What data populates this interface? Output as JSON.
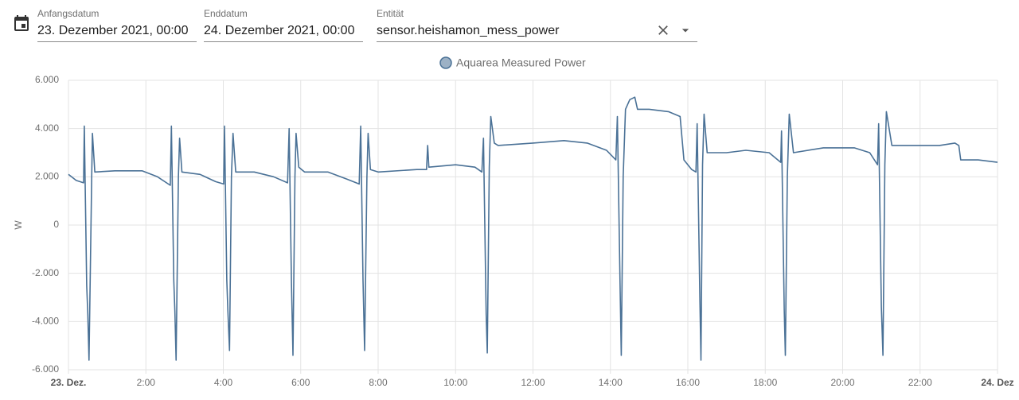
{
  "header": {
    "start_label": "Anfangsdatum",
    "start_value": "23. Dezember 2021, 00:00",
    "end_label": "Enddatum",
    "end_value": "24. Dezember 2021, 00:00",
    "entity_label": "Entität",
    "entity_value": "sensor.heishamon_mess_power"
  },
  "chart_data": {
    "type": "line",
    "y_label": "W",
    "x": [
      0,
      0.2,
      0.39,
      0.41,
      0.47,
      0.5,
      0.53,
      0.6,
      0.62,
      0.68,
      1.2,
      1.9,
      2.3,
      2.63,
      2.66,
      2.72,
      2.75,
      2.78,
      2.84,
      2.87,
      2.93,
      3.4,
      3.8,
      4.01,
      4.03,
      4.09,
      4.12,
      4.16,
      4.21,
      4.25,
      4.32,
      4.8,
      5.3,
      5.66,
      5.7,
      5.76,
      5.8,
      5.85,
      5.88,
      5.95,
      6.1,
      6.7,
      7.2,
      7.51,
      7.55,
      7.61,
      7.65,
      7.71,
      7.74,
      7.8,
      8.0,
      9.0,
      9.25,
      9.28,
      9.31,
      10.0,
      10.5,
      10.68,
      10.72,
      10.79,
      10.82,
      10.87,
      10.91,
      11.0,
      11.1,
      12.0,
      12.8,
      13.4,
      13.9,
      14.14,
      14.18,
      14.25,
      14.28,
      14.33,
      14.39,
      14.5,
      14.63,
      14.7,
      15.0,
      15.5,
      15.8,
      15.9,
      16.1,
      16.21,
      16.24,
      16.31,
      16.34,
      16.38,
      16.42,
      16.5,
      17.0,
      17.5,
      18.1,
      18.4,
      18.42,
      18.49,
      18.52,
      18.57,
      18.62,
      18.73,
      19.5,
      20.3,
      20.7,
      20.9,
      20.93,
      21.0,
      21.04,
      21.09,
      21.13,
      21.27,
      22.0,
      22.5,
      22.9,
      23.0,
      23.05,
      23.5,
      24.0
    ],
    "series": [
      {
        "name": "Aquarea Measured Power",
        "color": "#4a7196",
        "values": [
          2100,
          1850,
          1750,
          4100,
          -2500,
          -3700,
          -5600,
          2000,
          3800,
          2200,
          2250,
          2250,
          2000,
          1650,
          4100,
          -2300,
          -3600,
          -5600,
          2000,
          3600,
          2200,
          2100,
          1800,
          1700,
          4100,
          -2300,
          -3600,
          -5200,
          2000,
          3800,
          2200,
          2200,
          2000,
          1750,
          4000,
          -2400,
          -5400,
          2000,
          3800,
          2400,
          2200,
          2200,
          1900,
          1700,
          4100,
          -2300,
          -5200,
          2000,
          3800,
          2300,
          2200,
          2300,
          2300,
          3300,
          2400,
          2500,
          2400,
          2200,
          3600,
          -3700,
          -5300,
          2400,
          4500,
          3400,
          3300,
          3400,
          3500,
          3400,
          3100,
          2700,
          4500,
          -2500,
          -5400,
          2000,
          4800,
          5200,
          5300,
          4800,
          4800,
          4700,
          4500,
          2700,
          2300,
          2200,
          4200,
          -3000,
          -5600,
          2500,
          4600,
          3000,
          3000,
          3100,
          3000,
          2600,
          3900,
          -3500,
          -5400,
          2000,
          4600,
          3000,
          3200,
          3200,
          3000,
          2500,
          4200,
          -3400,
          -5400,
          2500,
          4700,
          3300,
          3300,
          3300,
          3400,
          3300,
          2700,
          2700,
          2600
        ]
      }
    ],
    "xlim": [
      0,
      24
    ],
    "xticks": [
      {
        "value": 0,
        "label": "23. Dez."
      },
      {
        "value": 2,
        "label": "2:00"
      },
      {
        "value": 4,
        "label": "4:00"
      },
      {
        "value": 6,
        "label": "6:00"
      },
      {
        "value": 8,
        "label": "8:00"
      },
      {
        "value": 10,
        "label": "10:00"
      },
      {
        "value": 12,
        "label": "12:00"
      },
      {
        "value": 14,
        "label": "14:00"
      },
      {
        "value": 16,
        "label": "16:00"
      },
      {
        "value": 18,
        "label": "18:00"
      },
      {
        "value": 20,
        "label": "20:00"
      },
      {
        "value": 22,
        "label": "22:00"
      },
      {
        "value": 24,
        "label": "24. Dez"
      }
    ],
    "ylim": [
      -6000,
      6000
    ],
    "yticks": [
      {
        "value": -6000,
        "label": "-6.000"
      },
      {
        "value": -4000,
        "label": "-4.000"
      },
      {
        "value": -2000,
        "label": "-2.000"
      },
      0,
      {
        "value": 2000,
        "label": "2.000"
      },
      {
        "value": 4000,
        "label": "4.000"
      },
      {
        "value": 6000,
        "label": "6.000"
      }
    ],
    "grid": true
  }
}
